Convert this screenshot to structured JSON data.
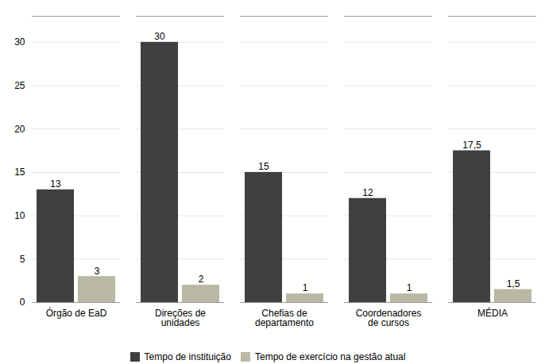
{
  "chart_data": {
    "type": "bar",
    "categories": [
      "Órgão de EaD",
      "Direções de\nunidades",
      "Chefias de\ndepartamento",
      "Coordenadores\nde cursos",
      "MÉDIA"
    ],
    "series": [
      {
        "name": "Tempo de instituição",
        "color": "#404040",
        "values": [
          13,
          30,
          15,
          12,
          17.5
        ],
        "value_labels": [
          "13",
          "30",
          "15",
          "12",
          "17,5"
        ]
      },
      {
        "name": "Tempo de exercício na gestão atual",
        "color": "#b8b8a4",
        "values": [
          3,
          2,
          1,
          1,
          1.5
        ],
        "value_labels": [
          "3",
          "2",
          "1",
          "1",
          "1,5"
        ]
      }
    ],
    "ylim": [
      0,
      33
    ],
    "yticks": [
      0,
      5,
      10,
      15,
      20,
      25,
      30
    ],
    "grid": true,
    "legend": "bottom",
    "data_labels": true
  }
}
